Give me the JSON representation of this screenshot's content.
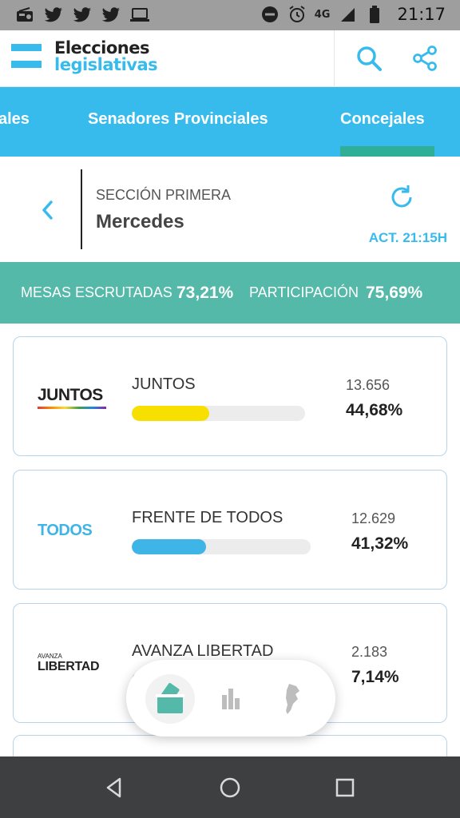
{
  "status_bar": {
    "time": "21:17",
    "network": "4G",
    "left_icons": [
      "radio-icon",
      "twitter-icon",
      "twitter-icon",
      "twitter-icon",
      "laptop-icon"
    ],
    "right_icons": [
      "do-not-disturb-icon",
      "alarm-icon",
      "signal-icon",
      "battery-icon"
    ]
  },
  "header": {
    "title_line1": "Elecciones",
    "title_line2": "legislativas",
    "search_icon": "search-icon",
    "share_icon": "share-icon"
  },
  "tabs": {
    "items": [
      {
        "label": "ales"
      },
      {
        "label": "Senadores Provinciales"
      },
      {
        "label": "Concejales"
      }
    ],
    "active_index": 2
  },
  "section": {
    "label": "SECCIÓN PRIMERA",
    "name": "Mercedes",
    "updated": "ACT. 21:15H"
  },
  "stats": {
    "mesas_label": "MESAS ESCRUTADAS",
    "mesas_value": "73,21%",
    "participacion_label": "PARTICIPACIÓN",
    "participacion_value": "75,69%"
  },
  "results": [
    {
      "logo_text": "JUNTOS",
      "name": "JUNTOS",
      "votes": "13.656",
      "percent": "44,68%",
      "share": 0.4468,
      "color": "#f7df00"
    },
    {
      "logo_text": "TODOS",
      "name": "FRENTE DE TODOS",
      "votes": "12.629",
      "percent": "41,32%",
      "share": 0.4132,
      "color": "#3fb4e6"
    },
    {
      "logo_text_small": "AVANZA",
      "logo_text": "LIBERTAD",
      "name": "AVANZA LIBERTAD",
      "votes": "2.183",
      "percent": "7,14%",
      "share": 0.0714,
      "color": "#7a4d9c"
    }
  ],
  "bottom_nav": {
    "items": [
      "ballot-icon",
      "bar-chart-icon",
      "argentina-map-icon"
    ],
    "active_index": 0
  },
  "colors": {
    "accent": "#37bbed",
    "teal": "#54b9a8",
    "tab_underline": "#2fae98"
  }
}
